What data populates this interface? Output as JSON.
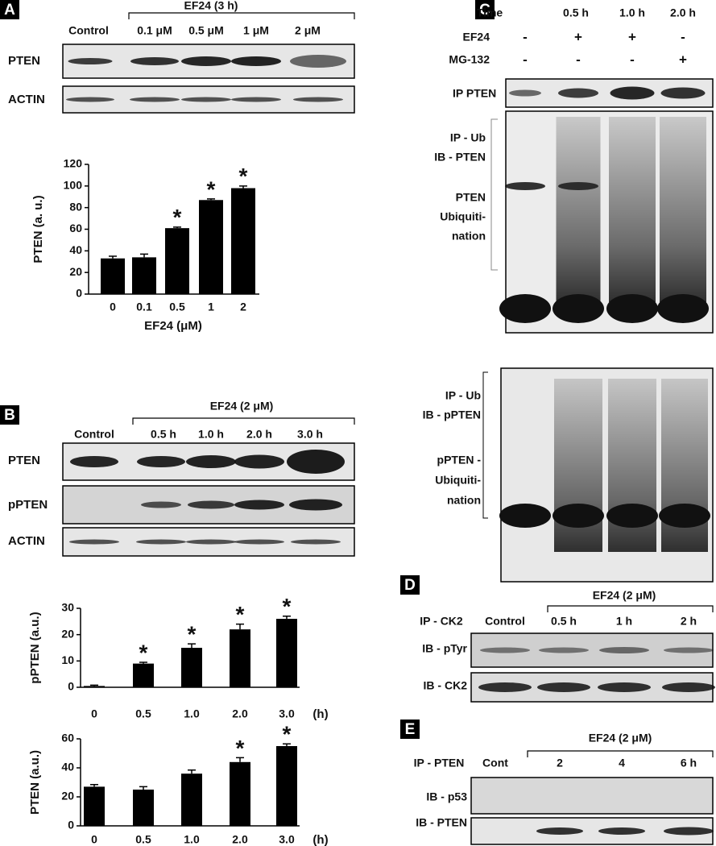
{
  "panel_labels": [
    "A",
    "B",
    "C",
    "D",
    "E"
  ],
  "panel_a": {
    "treatment": "EF24 (3 h)",
    "lanes": [
      "Control",
      "0.1 μM",
      "0.5 μM",
      "1 μM",
      "2 μM"
    ],
    "blots": [
      "PTEN",
      "ACTIN"
    ]
  },
  "panel_b": {
    "treatment": "EF24 (2 μM)",
    "lanes": [
      "Control",
      "0.5 h",
      "1.0 h",
      "2.0 h",
      "3.0 h"
    ],
    "blots": [
      "PTEN",
      "pPTEN",
      "ACTIN"
    ]
  },
  "panel_c": {
    "conditions": [
      {
        "name": "Time",
        "lanes": [
          "0.5 h",
          "1.0 h",
          "2.0 h"
        ]
      },
      {
        "name": "EF24",
        "lanes": [
          "-",
          "+",
          "+",
          "-"
        ]
      },
      {
        "name": "MG-132",
        "lanes": [
          "-",
          "-",
          "-",
          "+"
        ]
      }
    ],
    "blot_top": "IP PTEN",
    "blot_mid": [
      "IP - Ub",
      "IB - PTEN",
      "PTEN",
      "Ubiquiti-",
      "nation"
    ],
    "blot_bottom": [
      "IP - Ub",
      "IB - pPTEN",
      "pPTEN -",
      "Ubiquiti-",
      "nation"
    ]
  },
  "panel_d": {
    "ip": "IP - CK2",
    "treatment": "EF24 (2 μM)",
    "lanes": [
      "Control",
      "0.5 h",
      "1 h",
      "2 h"
    ],
    "blots": [
      "IB - pTyr",
      "IB - CK2"
    ]
  },
  "panel_e": {
    "ip": "IP - PTEN",
    "treatment": "EF24 (2 μM)",
    "lanes": [
      "Cont",
      "2",
      "4",
      "6  h"
    ],
    "blots": [
      "IB - p53",
      "IB - PTEN"
    ]
  },
  "chart_data": [
    {
      "type": "bar",
      "ylabel": "PTEN (a. u.)",
      "xlabel": "EF24 (μM)",
      "categories": [
        "0",
        "0.1",
        "0.5",
        "1",
        "2"
      ],
      "values": [
        33,
        34,
        61,
        87,
        98
      ],
      "errors": [
        2,
        3,
        1,
        1,
        2
      ],
      "significant": [
        false,
        false,
        true,
        true,
        true
      ],
      "marker": "*",
      "color": "#000000",
      "ylim": [
        0,
        120
      ],
      "yticks": [
        0,
        20,
        40,
        60,
        80,
        100,
        120
      ]
    },
    {
      "type": "bar",
      "ylabel": "pPTEN (a.u.)",
      "xlabel": "(h)",
      "categories": [
        "0",
        "0.5",
        "1.0",
        "2.0",
        "3.0"
      ],
      "values": [
        0.5,
        9,
        15,
        22,
        26
      ],
      "errors": [
        0.3,
        0.5,
        1.5,
        2,
        1
      ],
      "significant": [
        false,
        true,
        true,
        true,
        true
      ],
      "marker": "*",
      "color": "#000000",
      "ylim": [
        0,
        30
      ],
      "yticks": [
        0,
        10,
        20,
        30
      ]
    },
    {
      "type": "bar",
      "ylabel": "PTEN (a.u.)",
      "xlabel": "(h)",
      "categories": [
        "0",
        "0.5",
        "1.0",
        "2.0",
        "3.0"
      ],
      "values": [
        27,
        25,
        36,
        44,
        55
      ],
      "errors": [
        1.5,
        2,
        2.5,
        3,
        1.5
      ],
      "significant": [
        false,
        false,
        false,
        true,
        true
      ],
      "marker": "*",
      "color": "#000000",
      "ylim": [
        0,
        60
      ],
      "yticks": [
        0,
        20,
        40,
        60
      ]
    }
  ]
}
